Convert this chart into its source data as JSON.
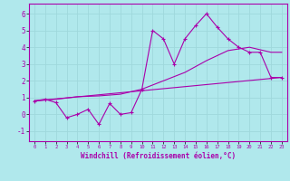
{
  "background_color": "#b0e8ec",
  "grid_color": "#9fd8dc",
  "line_color": "#aa00aa",
  "xlabel": "Windchill (Refroidissement éolien,°C)",
  "xlim": [
    -0.5,
    23.5
  ],
  "ylim": [
    -1.6,
    6.6
  ],
  "yticks": [
    -1,
    0,
    1,
    2,
    3,
    4,
    5,
    6
  ],
  "xticks": [
    0,
    1,
    2,
    3,
    4,
    5,
    6,
    7,
    8,
    9,
    10,
    11,
    12,
    13,
    14,
    15,
    16,
    17,
    18,
    19,
    20,
    21,
    22,
    23
  ],
  "series1_x": [
    0,
    1,
    2,
    3,
    4,
    5,
    6,
    7,
    8,
    9,
    10,
    11,
    12,
    13,
    14,
    15,
    16,
    17,
    18,
    19,
    20,
    21,
    22,
    23
  ],
  "series1_y": [
    0.8,
    0.9,
    0.7,
    -0.2,
    0.0,
    0.3,
    -0.6,
    0.65,
    0.0,
    0.1,
    1.5,
    5.0,
    4.5,
    3.0,
    4.5,
    5.3,
    6.0,
    5.2,
    4.5,
    4.0,
    3.7,
    3.7,
    2.2,
    2.2
  ],
  "series2_x": [
    0,
    23
  ],
  "series2_y": [
    0.8,
    2.2
  ],
  "series3_x": [
    0,
    2,
    4,
    6,
    8,
    10,
    12,
    14,
    16,
    18,
    20,
    22,
    23
  ],
  "series3_y": [
    0.8,
    0.9,
    1.05,
    1.1,
    1.2,
    1.5,
    2.0,
    2.5,
    3.2,
    3.8,
    4.0,
    3.7,
    3.7
  ]
}
